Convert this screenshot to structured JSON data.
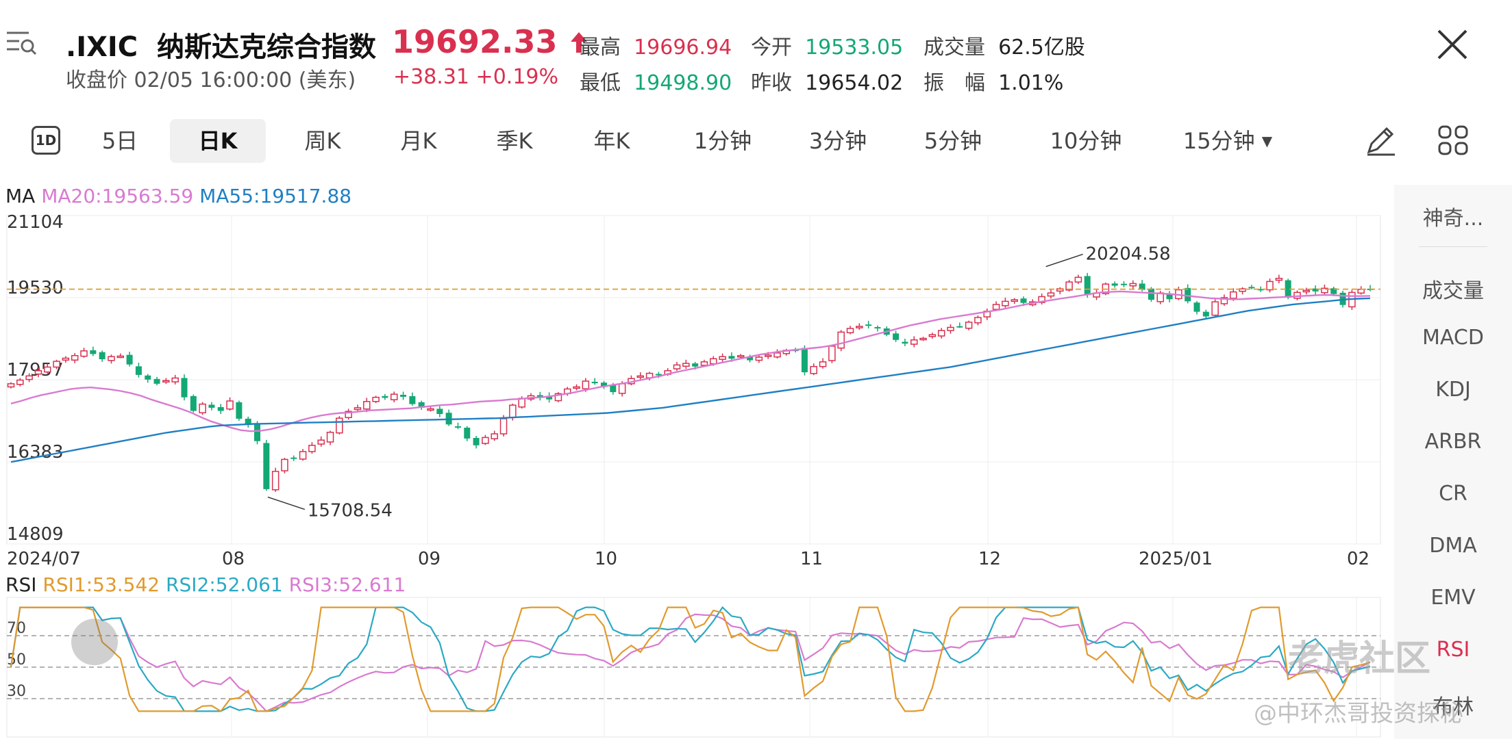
{
  "header": {
    "symbol": ".IXIC",
    "name": "纳斯达克综合指数",
    "subtitle": "收盘价 02/05 16:00:00 (美东)",
    "price": "19692.33",
    "change": "+38.31 +0.19%",
    "stats": [
      {
        "label": "最高",
        "value": "19696.94",
        "color": "#d9304f"
      },
      {
        "label": "今开",
        "value": "19533.05",
        "color": "#13a874"
      },
      {
        "label": "成交量",
        "value": "62.5亿股",
        "color": "#222222"
      },
      {
        "label": "最低",
        "value": "19498.90",
        "color": "#13a874"
      },
      {
        "label": "昨收",
        "value": "19654.02",
        "color": "#222222"
      },
      {
        "label": "振　幅",
        "value": "1.01%",
        "color": "#222222"
      }
    ]
  },
  "tabs": {
    "d1_label": "1D",
    "items": [
      "5日",
      "日K",
      "周K",
      "月K",
      "季K",
      "年K",
      "1分钟",
      "3分钟",
      "5分钟",
      "10分钟",
      "15分钟"
    ],
    "active": "日K"
  },
  "ma_legend": {
    "label": "MA",
    "ma20": "MA20:19563.59",
    "ma55": "MA55:19517.88"
  },
  "rsi_legend": {
    "label": "RSI",
    "rsi1": "RSI1:53.542",
    "rsi2": "RSI2:52.061",
    "rsi3": "RSI3:52.611"
  },
  "right_panel": {
    "items": [
      "神奇...",
      "成交量",
      "MACD",
      "KDJ",
      "ARBR",
      "CR",
      "DMA",
      "EMV",
      "RSI",
      "布林"
    ]
  },
  "watermark": {
    "brand": "老虎社区",
    "author": "@中环杰哥投资探秘"
  },
  "colors": {
    "up": "#d9304f",
    "down": "#13a874",
    "ma20": "#d97ad0",
    "ma55": "#1f7fc4",
    "rsi1": "#e19a2d",
    "rsi2": "#2aa9c4",
    "rsi3": "#d97ad0"
  },
  "chart_data": {
    "type": "candlestick",
    "y_ticks": [
      "21104",
      "19530",
      "17957",
      "16383",
      "14809"
    ],
    "y_range": [
      14809,
      21104
    ],
    "x_ticks": [
      "2024/07",
      "08",
      "09",
      "10",
      "11",
      "12",
      "2025/01",
      "02"
    ],
    "annotations": {
      "high": "20204.58",
      "low": "15708.54"
    },
    "current_price_line": 19692.33,
    "rsi_ticks": [
      "70",
      "50",
      "30"
    ],
    "closes": [
      17880,
      17950,
      18030,
      18130,
      18200,
      18310,
      18370,
      18420,
      18510,
      18450,
      18350,
      18400,
      18410,
      18250,
      18050,
      17960,
      17880,
      17940,
      17990,
      17620,
      17360,
      17490,
      17420,
      17360,
      17550,
      17210,
      17090,
      16780,
      15860,
      16200,
      16430,
      16460,
      16580,
      16700,
      16800,
      16950,
      17220,
      17350,
      17420,
      17540,
      17620,
      17610,
      17680,
      17630,
      17490,
      17420,
      17400,
      17300,
      17100,
      17050,
      16830,
      16700,
      16850,
      16920,
      17210,
      17470,
      17600,
      17650,
      17610,
      17580,
      17690,
      17780,
      17820,
      17930,
      17890,
      17820,
      17720,
      17880,
      17980,
      18030,
      18080,
      18050,
      18130,
      18240,
      18270,
      18210,
      18300,
      18360,
      18400,
      18360,
      18420,
      18330,
      18390,
      18430,
      18470,
      18520,
      18530,
      18100,
      18210,
      18300,
      18600,
      18870,
      18940,
      18980,
      18990,
      18940,
      18820,
      18720,
      18650,
      18720,
      18750,
      18820,
      18900,
      18960,
      18980,
      19060,
      19150,
      19270,
      19400,
      19460,
      19490,
      19430,
      19450,
      19550,
      19620,
      19700,
      19830,
      19920,
      19580,
      19620,
      19790,
      19760,
      19780,
      19800,
      19680,
      19490,
      19620,
      19500,
      19680,
      19460,
      19260,
      19170,
      19450,
      19530,
      19640,
      19700,
      19720,
      19680,
      19840,
      19900,
      19530,
      19630,
      19670,
      19650,
      19710,
      19600,
      19390,
      19630,
      19690,
      19692
    ],
    "ma20": [
      17500,
      17550,
      17610,
      17660,
      17700,
      17740,
      17780,
      17800,
      17810,
      17790,
      17770,
      17740,
      17700,
      17650,
      17580,
      17520,
      17460,
      17400,
      17330,
      17240,
      17160,
      17100,
      17040,
      16990,
      16970,
      16980,
      17010,
      17060,
      17120,
      17180,
      17230,
      17270,
      17300,
      17320,
      17330,
      17350,
      17370,
      17380,
      17390,
      17400,
      17410,
      17430,
      17450,
      17470,
      17480,
      17500,
      17520,
      17540,
      17550,
      17560,
      17580,
      17590,
      17610,
      17620,
      17640,
      17670,
      17700,
      17740,
      17780,
      17820,
      17850,
      17880,
      17910,
      17950,
      17990,
      18030,
      18080,
      18120,
      18160,
      18200,
      18240,
      18280,
      18320,
      18360,
      18400,
      18440,
      18470,
      18500,
      18520,
      18540,
      18560,
      18580,
      18610,
      18650,
      18700,
      18750,
      18800,
      18850,
      18900,
      18950,
      19000,
      19040,
      19080,
      19120,
      19150,
      19180,
      19210,
      19240,
      19270,
      19300,
      19340,
      19380,
      19420,
      19450,
      19480,
      19510,
      19540,
      19570,
      19600,
      19630,
      19640,
      19650,
      19640,
      19630,
      19620,
      19610,
      19600,
      19580,
      19560,
      19540,
      19520,
      19510,
      19500,
      19500,
      19510,
      19520,
      19530,
      19540,
      19550,
      19560,
      19570,
      19580,
      19580,
      19570,
      19560,
      19560,
      19565
    ],
    "ma55": [
      16380,
      16420,
      16460,
      16500,
      16540,
      16580,
      16620,
      16660,
      16700,
      16740,
      16780,
      16820,
      16860,
      16900,
      16940,
      16970,
      17000,
      17030,
      17060,
      17080,
      17090,
      17100,
      17110,
      17115,
      17120,
      17125,
      17130,
      17135,
      17140,
      17145,
      17150,
      17155,
      17160,
      17165,
      17170,
      17175,
      17180,
      17185,
      17190,
      17195,
      17200,
      17205,
      17210,
      17215,
      17220,
      17230,
      17240,
      17250,
      17260,
      17270,
      17280,
      17290,
      17300,
      17310,
      17320,
      17340,
      17360,
      17380,
      17400,
      17420,
      17450,
      17480,
      17510,
      17540,
      17570,
      17600,
      17630,
      17660,
      17690,
      17720,
      17750,
      17780,
      17810,
      17840,
      17870,
      17900,
      17930,
      17960,
      17990,
      18020,
      18050,
      18080,
      18110,
      18140,
      18170,
      18200,
      18240,
      18280,
      18320,
      18360,
      18400,
      18440,
      18480,
      18520,
      18560,
      18600,
      18640,
      18680,
      18720,
      18760,
      18800,
      18840,
      18880,
      18920,
      18960,
      19000,
      19040,
      19080,
      19120,
      19160,
      19200,
      19240,
      19280,
      19310,
      19340,
      19370,
      19400,
      19420,
      19440,
      19460,
      19480,
      19500,
      19510,
      19518
    ]
  }
}
